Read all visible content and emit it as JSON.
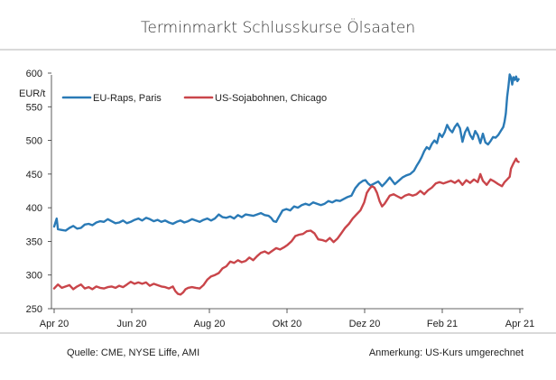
{
  "footer": {
    "source": "Quelle: CME, NYSE Liffe, AMI",
    "remark": "Anmerkung: US-Kurs umgerechnet"
  },
  "chart_data": {
    "type": "line",
    "title": "Terminmarkt Schlusskurse Ölsaaten",
    "ylabel": "EUR/t",
    "xlabel": "",
    "ylim": [
      250,
      600
    ],
    "yticks": [
      250,
      300,
      350,
      400,
      450,
      500,
      550,
      600
    ],
    "xtick_labels": [
      "Apr 20",
      "Jun 20",
      "Aug 20",
      "Okt 20",
      "Dez 20",
      "Feb 21",
      "Apr 21"
    ],
    "xlim_days": [
      0,
      365
    ],
    "grid": false,
    "legend": "top-left",
    "series": [
      {
        "name": "EU-Raps, Paris",
        "color": "#2a7ab6",
        "points": [
          [
            0,
            372
          ],
          [
            2,
            384
          ],
          [
            3,
            368
          ],
          [
            6,
            367
          ],
          [
            9,
            366
          ],
          [
            12,
            370
          ],
          [
            15,
            373
          ],
          [
            18,
            369
          ],
          [
            21,
            370
          ],
          [
            24,
            375
          ],
          [
            27,
            376
          ],
          [
            30,
            374
          ],
          [
            33,
            378
          ],
          [
            36,
            380
          ],
          [
            39,
            379
          ],
          [
            42,
            383
          ],
          [
            45,
            380
          ],
          [
            48,
            377
          ],
          [
            51,
            378
          ],
          [
            54,
            381
          ],
          [
            57,
            377
          ],
          [
            60,
            379
          ],
          [
            63,
            382
          ],
          [
            66,
            384
          ],
          [
            69,
            381
          ],
          [
            72,
            385
          ],
          [
            75,
            383
          ],
          [
            78,
            380
          ],
          [
            81,
            382
          ],
          [
            84,
            379
          ],
          [
            87,
            381
          ],
          [
            90,
            378
          ],
          [
            93,
            376
          ],
          [
            96,
            379
          ],
          [
            99,
            381
          ],
          [
            102,
            378
          ],
          [
            105,
            380
          ],
          [
            108,
            383
          ],
          [
            111,
            381
          ],
          [
            114,
            379
          ],
          [
            117,
            382
          ],
          [
            120,
            384
          ],
          [
            123,
            381
          ],
          [
            126,
            384
          ],
          [
            129,
            390
          ],
          [
            132,
            386
          ],
          [
            135,
            385
          ],
          [
            138,
            387
          ],
          [
            141,
            384
          ],
          [
            144,
            389
          ],
          [
            147,
            386
          ],
          [
            150,
            390
          ],
          [
            153,
            389
          ],
          [
            156,
            388
          ],
          [
            159,
            390
          ],
          [
            162,
            392
          ],
          [
            165,
            389
          ],
          [
            168,
            388
          ],
          [
            170,
            385
          ],
          [
            172,
            380
          ],
          [
            174,
            379
          ],
          [
            176,
            386
          ],
          [
            179,
            396
          ],
          [
            182,
            398
          ],
          [
            185,
            396
          ],
          [
            188,
            402
          ],
          [
            191,
            400
          ],
          [
            194,
            404
          ],
          [
            197,
            406
          ],
          [
            200,
            404
          ],
          [
            203,
            408
          ],
          [
            206,
            406
          ],
          [
            209,
            404
          ],
          [
            212,
            406
          ],
          [
            215,
            410
          ],
          [
            218,
            408
          ],
          [
            221,
            411
          ],
          [
            224,
            410
          ],
          [
            227,
            413
          ],
          [
            230,
            416
          ],
          [
            233,
            418
          ],
          [
            236,
            429
          ],
          [
            239,
            436
          ],
          [
            242,
            440
          ],
          [
            244,
            441
          ],
          [
            246,
            436
          ],
          [
            248,
            433
          ],
          [
            251,
            436
          ],
          [
            254,
            439
          ],
          [
            257,
            432
          ],
          [
            260,
            438
          ],
          [
            263,
            445
          ],
          [
            265,
            440
          ],
          [
            267,
            435
          ],
          [
            270,
            440
          ],
          [
            273,
            445
          ],
          [
            276,
            448
          ],
          [
            279,
            450
          ],
          [
            282,
            455
          ],
          [
            284,
            462
          ],
          [
            286,
            468
          ],
          [
            288,
            475
          ],
          [
            290,
            484
          ],
          [
            292,
            490
          ],
          [
            294,
            487
          ],
          [
            296,
            495
          ],
          [
            298,
            500
          ],
          [
            300,
            496
          ],
          [
            302,
            510
          ],
          [
            304,
            505
          ],
          [
            306,
            512
          ],
          [
            308,
            523
          ],
          [
            310,
            516
          ],
          [
            312,
            512
          ],
          [
            314,
            520
          ],
          [
            316,
            525
          ],
          [
            318,
            518
          ],
          [
            320,
            498
          ],
          [
            322,
            512
          ],
          [
            324,
            519
          ],
          [
            326,
            508
          ],
          [
            328,
            502
          ],
          [
            330,
            514
          ],
          [
            332,
            508
          ],
          [
            334,
            496
          ],
          [
            336,
            510
          ],
          [
            338,
            497
          ],
          [
            340,
            494
          ],
          [
            342,
            499
          ],
          [
            344,
            505
          ],
          [
            346,
            504
          ],
          [
            348,
            508
          ],
          [
            350,
            514
          ],
          [
            352,
            520
          ],
          [
            353,
            528
          ],
          [
            354,
            540
          ],
          [
            355,
            565
          ],
          [
            356,
            580
          ],
          [
            357,
            598
          ],
          [
            358,
            594
          ],
          [
            359,
            583
          ],
          [
            360,
            594
          ],
          [
            361,
            590
          ],
          [
            362,
            595
          ],
          [
            363,
            588
          ],
          [
            364,
            591
          ]
        ]
      },
      {
        "name": "US-Sojabohnen, Chicago",
        "color": "#c9454a",
        "points": [
          [
            0,
            280
          ],
          [
            3,
            286
          ],
          [
            6,
            281
          ],
          [
            9,
            283
          ],
          [
            12,
            285
          ],
          [
            15,
            279
          ],
          [
            18,
            283
          ],
          [
            21,
            286
          ],
          [
            24,
            280
          ],
          [
            27,
            282
          ],
          [
            30,
            279
          ],
          [
            33,
            283
          ],
          [
            36,
            281
          ],
          [
            39,
            280
          ],
          [
            42,
            282
          ],
          [
            45,
            283
          ],
          [
            48,
            281
          ],
          [
            51,
            284
          ],
          [
            54,
            282
          ],
          [
            57,
            286
          ],
          [
            60,
            290
          ],
          [
            63,
            287
          ],
          [
            66,
            289
          ],
          [
            69,
            287
          ],
          [
            72,
            289
          ],
          [
            75,
            284
          ],
          [
            78,
            287
          ],
          [
            81,
            285
          ],
          [
            84,
            283
          ],
          [
            87,
            282
          ],
          [
            90,
            280
          ],
          [
            93,
            283
          ],
          [
            95,
            276
          ],
          [
            97,
            272
          ],
          [
            99,
            271
          ],
          [
            101,
            274
          ],
          [
            103,
            279
          ],
          [
            105,
            281
          ],
          [
            108,
            282
          ],
          [
            111,
            281
          ],
          [
            114,
            280
          ],
          [
            117,
            285
          ],
          [
            120,
            293
          ],
          [
            123,
            298
          ],
          [
            126,
            300
          ],
          [
            129,
            303
          ],
          [
            132,
            310
          ],
          [
            135,
            313
          ],
          [
            138,
            320
          ],
          [
            141,
            318
          ],
          [
            144,
            322
          ],
          [
            147,
            319
          ],
          [
            150,
            321
          ],
          [
            153,
            326
          ],
          [
            156,
            322
          ],
          [
            159,
            328
          ],
          [
            162,
            333
          ],
          [
            165,
            335
          ],
          [
            168,
            332
          ],
          [
            171,
            336
          ],
          [
            174,
            340
          ],
          [
            177,
            338
          ],
          [
            180,
            341
          ],
          [
            183,
            345
          ],
          [
            186,
            350
          ],
          [
            189,
            358
          ],
          [
            192,
            360
          ],
          [
            195,
            361
          ],
          [
            198,
            365
          ],
          [
            201,
            366
          ],
          [
            204,
            362
          ],
          [
            207,
            353
          ],
          [
            210,
            352
          ],
          [
            213,
            350
          ],
          [
            216,
            355
          ],
          [
            219,
            349
          ],
          [
            222,
            354
          ],
          [
            225,
            362
          ],
          [
            228,
            370
          ],
          [
            231,
            376
          ],
          [
            234,
            384
          ],
          [
            237,
            390
          ],
          [
            240,
            396
          ],
          [
            243,
            408
          ],
          [
            245,
            422
          ],
          [
            247,
            428
          ],
          [
            249,
            432
          ],
          [
            251,
            430
          ],
          [
            253,
            422
          ],
          [
            255,
            410
          ],
          [
            257,
            402
          ],
          [
            259,
            406
          ],
          [
            261,
            412
          ],
          [
            263,
            418
          ],
          [
            266,
            420
          ],
          [
            269,
            417
          ],
          [
            272,
            414
          ],
          [
            275,
            418
          ],
          [
            278,
            420
          ],
          [
            281,
            418
          ],
          [
            284,
            420
          ],
          [
            287,
            425
          ],
          [
            290,
            420
          ],
          [
            293,
            426
          ],
          [
            296,
            430
          ],
          [
            299,
            436
          ],
          [
            302,
            438
          ],
          [
            305,
            436
          ],
          [
            308,
            438
          ],
          [
            311,
            440
          ],
          [
            314,
            437
          ],
          [
            317,
            441
          ],
          [
            320,
            434
          ],
          [
            323,
            441
          ],
          [
            326,
            437
          ],
          [
            329,
            442
          ],
          [
            332,
            438
          ],
          [
            334,
            450
          ],
          [
            336,
            440
          ],
          [
            339,
            434
          ],
          [
            342,
            442
          ],
          [
            345,
            439
          ],
          [
            348,
            435
          ],
          [
            351,
            432
          ],
          [
            353,
            438
          ],
          [
            355,
            442
          ],
          [
            357,
            446
          ],
          [
            358,
            458
          ],
          [
            360,
            466
          ],
          [
            362,
            473
          ],
          [
            363,
            469
          ],
          [
            364,
            468
          ]
        ]
      }
    ]
  }
}
